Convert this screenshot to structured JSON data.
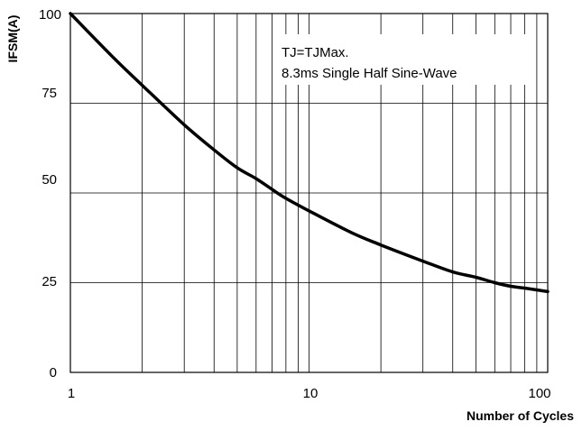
{
  "chart_data": {
    "type": "line",
    "x_scale": "log",
    "xlim": [
      1,
      100
    ],
    "ylim": [
      0,
      100
    ],
    "grid": true,
    "xlabel": "Number of Cycles",
    "ylabel": "IFSM(A)",
    "x_ticks": [
      "1",
      "10",
      "100"
    ],
    "y_ticks": [
      "100",
      "75",
      "50",
      "25",
      "0"
    ],
    "annotation": [
      "TJ=TJMax.",
      "8.3ms Single Half Sine-Wave"
    ],
    "series": [
      {
        "x": [
          1,
          1.5,
          2,
          3,
          4,
          5,
          6,
          7,
          8,
          10,
          15,
          20,
          30,
          40,
          50,
          60,
          70,
          80,
          100
        ],
        "y": [
          100,
          88,
          80,
          69,
          62,
          57,
          54,
          51,
          48.5,
          45,
          39,
          35.5,
          31,
          28,
          26.5,
          25,
          24,
          23.5,
          22.5
        ]
      }
    ]
  }
}
